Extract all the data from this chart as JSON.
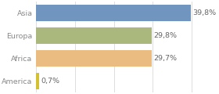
{
  "categories": [
    "Asia",
    "Europa",
    "Africa",
    "America"
  ],
  "values": [
    39.8,
    29.8,
    29.7,
    0.7
  ],
  "labels": [
    "39,8%",
    "29,8%",
    "29,7%",
    "0,7%"
  ],
  "bar_colors": [
    "#7096c0",
    "#aab87e",
    "#eabc82",
    "#d4c030"
  ],
  "background_color": "#ffffff",
  "xlim": [
    0,
    46
  ],
  "bar_height": 0.72,
  "label_fontsize": 6.8,
  "tick_fontsize": 6.8,
  "grid_color": "#d8d8d8",
  "label_color": "#666666",
  "tick_color": "#888888"
}
